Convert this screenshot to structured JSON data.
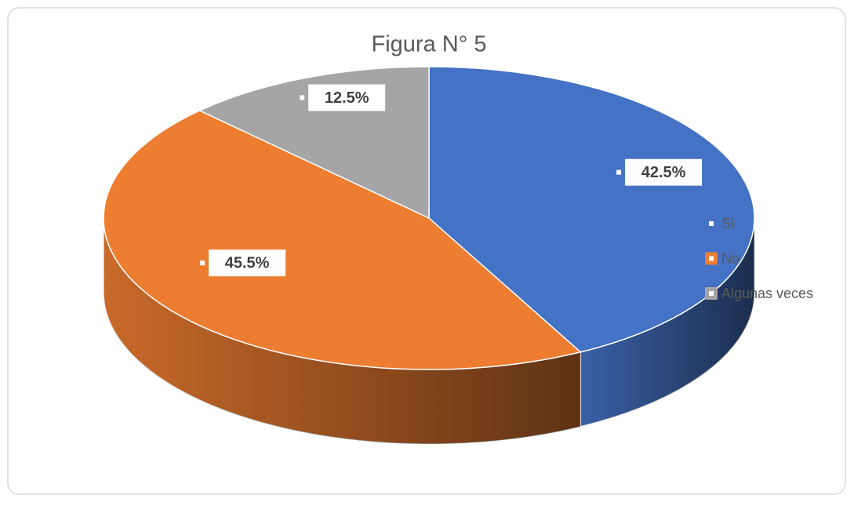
{
  "chart_data": {
    "type": "pie",
    "title": "Figura N° 5",
    "categories": [
      "Si",
      "No",
      "Algunas veces"
    ],
    "values": [
      42.5,
      45.5,
      12.5
    ],
    "value_labels": [
      "42.5%",
      "45.5%",
      "12.5%"
    ],
    "colors": [
      "#4472c4",
      "#ed7d31",
      "#a5a5a5"
    ],
    "legend": "right"
  }
}
